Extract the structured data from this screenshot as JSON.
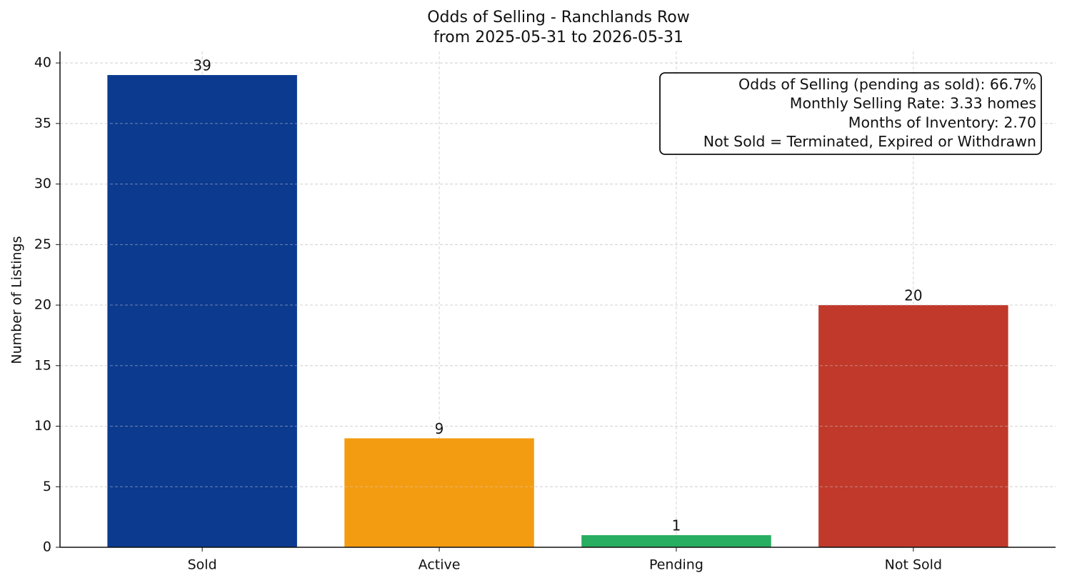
{
  "chart_data": {
    "type": "bar",
    "title": "Odds of Selling - Ranchlands Row",
    "subtitle": "from 2025-05-31 to 2026-05-31",
    "y_label": "Number of Listings",
    "categories": [
      "Sold",
      "Active",
      "Pending",
      "Not Sold"
    ],
    "values": [
      39,
      9,
      1,
      20
    ],
    "colors": [
      "#0b3a8f",
      "#f39c12",
      "#27ae60",
      "#c0392b"
    ],
    "ylim": [
      0,
      40.95
    ],
    "yticks": [
      0,
      5,
      10,
      15,
      20,
      25,
      30,
      35,
      40
    ],
    "grid": true,
    "annotation": [
      "Odds of Selling (pending as sold): 66.7%",
      "Monthly Selling Rate: 3.33 homes",
      "Months of Inventory: 2.70",
      "Not Sold = Terminated, Expired or Withdrawn"
    ]
  }
}
